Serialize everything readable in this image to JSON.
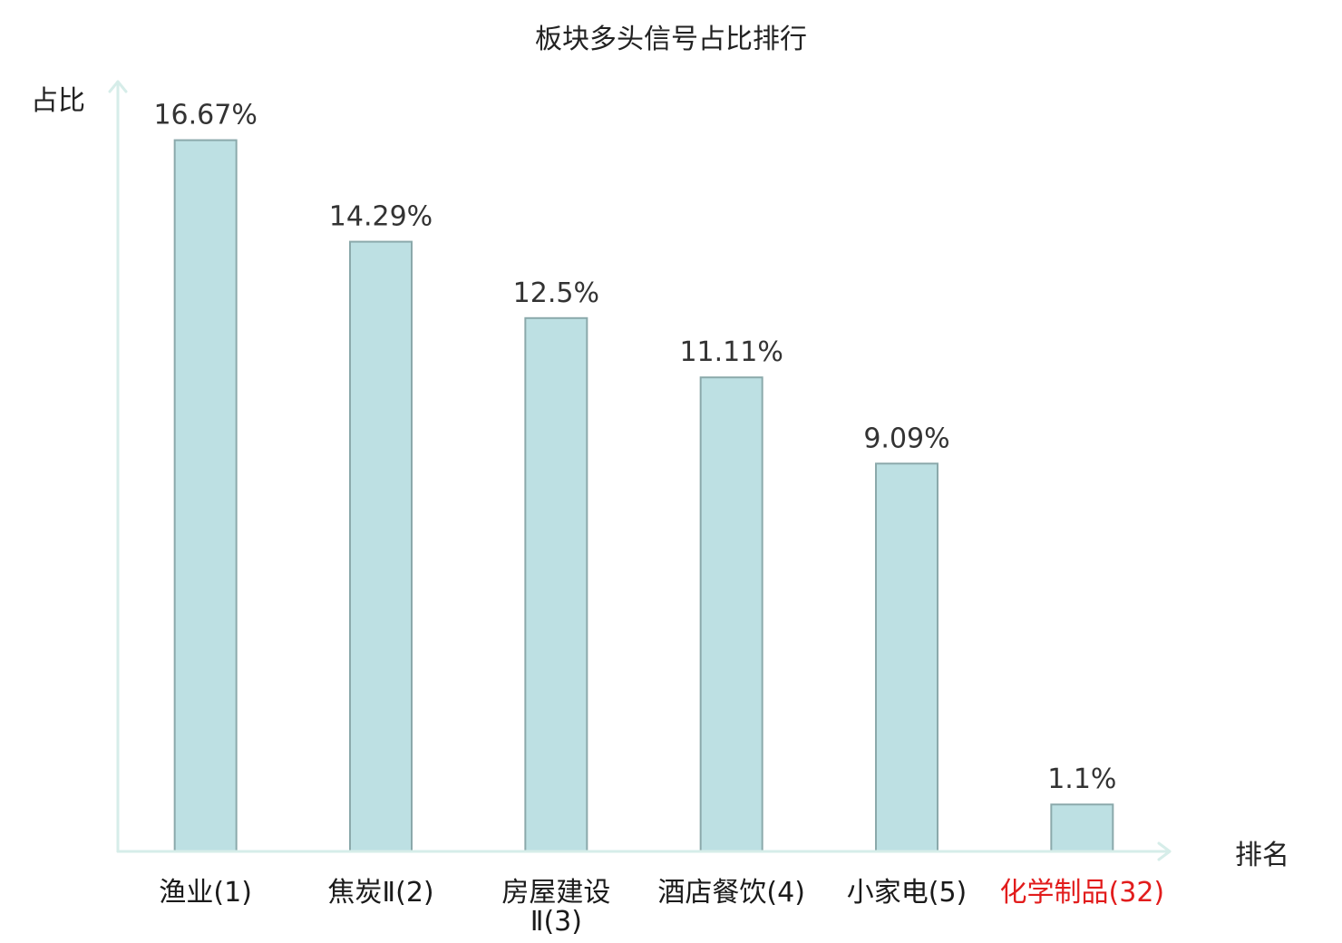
{
  "chart_data": {
    "type": "bar",
    "title": "板块多头信号占比排行",
    "xlabel": "排名",
    "ylabel": "占比",
    "categories": [
      "渔业(1)",
      "焦炭Ⅱ(2)",
      "房屋建设Ⅱ(3)",
      "酒店餐饮(4)",
      "小家电(5)",
      "化学制品(32)"
    ],
    "values": [
      16.67,
      14.29,
      12.5,
      11.11,
      9.09,
      1.1
    ],
    "value_labels": [
      "16.67%",
      "14.29%",
      "12.5%",
      "11.11%",
      "9.09%",
      "1.1%"
    ],
    "ylim": [
      0,
      18
    ],
    "grid": false,
    "colors": {
      "bar_fill": "#bde0e3",
      "bar_stroke": "#8ba9ab",
      "axis": "#d6ede9",
      "title_text": "#222222",
      "axis_name_text": "#222222",
      "value_text": "#333333"
    },
    "category_label_colors": [
      "#1a1a1a",
      "#1a1a1a",
      "#1a1a1a",
      "#1a1a1a",
      "#1a1a1a",
      "#e21c1c"
    ]
  }
}
